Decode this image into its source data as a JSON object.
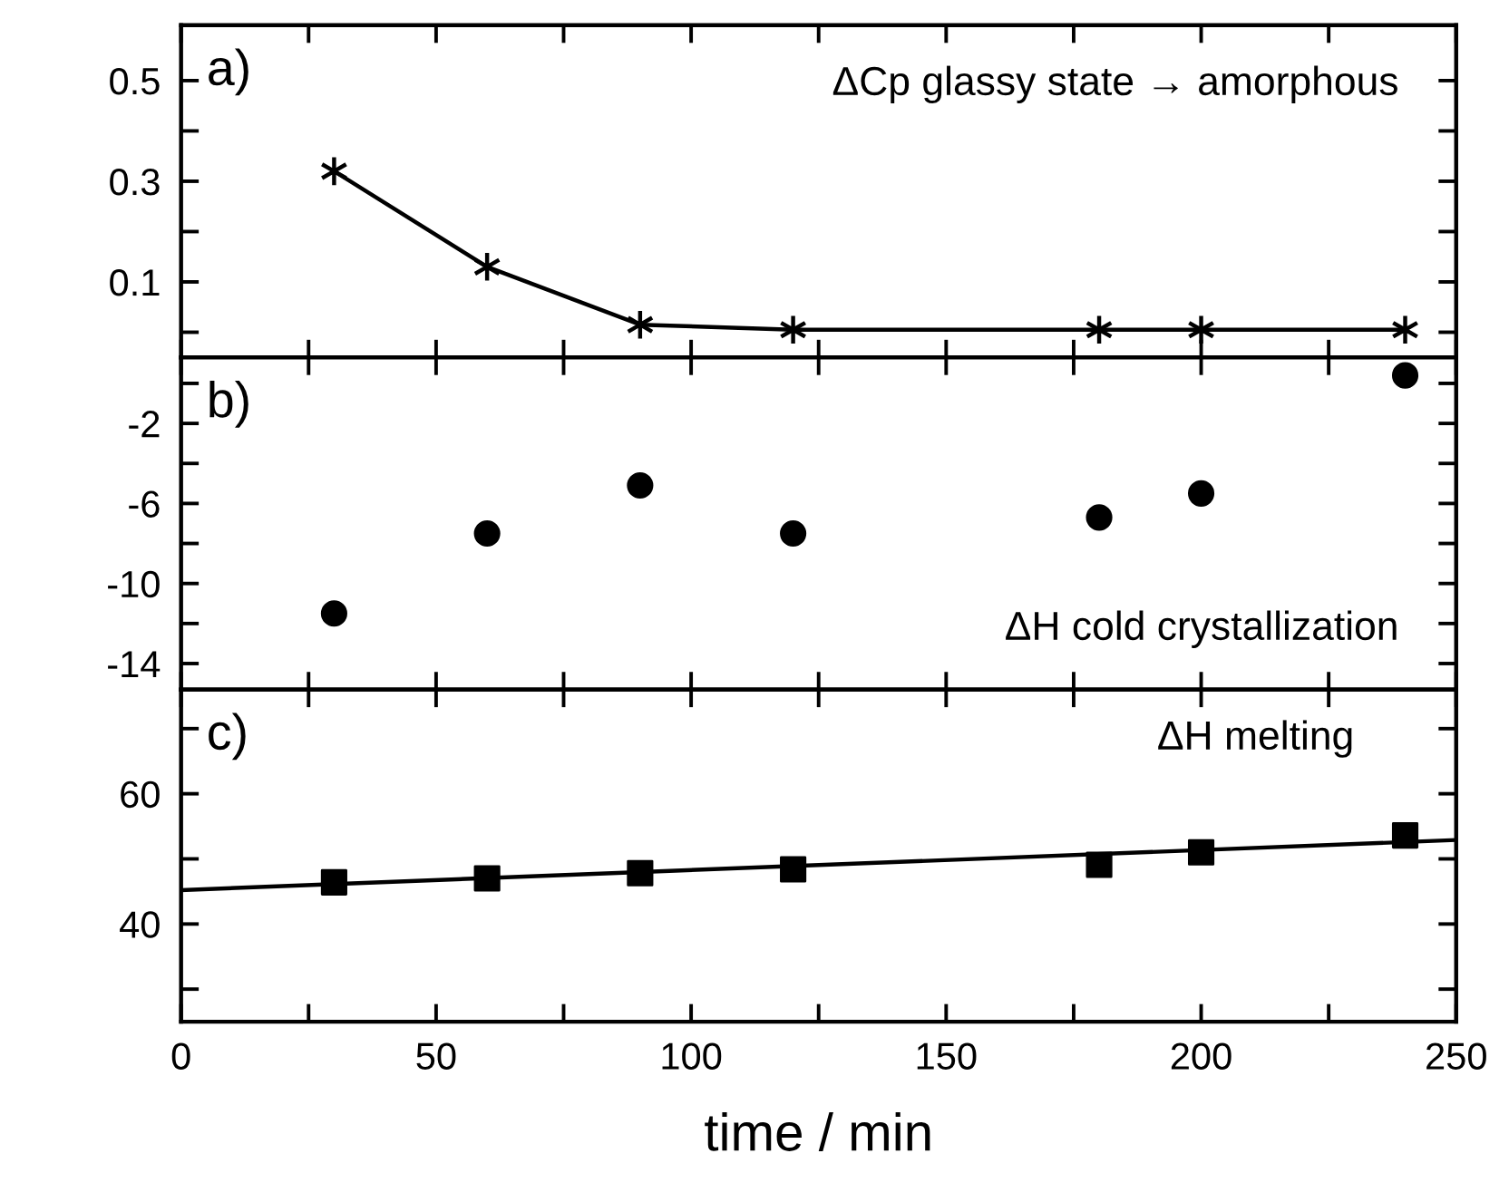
{
  "chart_data": [
    {
      "type": "line",
      "x": [
        30,
        60,
        90,
        120,
        180,
        200,
        240
      ],
      "marker": "cross",
      "line_style": "solid",
      "grid": false,
      "legend": false,
      "tick_labels": "y",
      "series": [
        {
          "color": "#000000",
          "values": [
            0.32,
            0.13,
            0.015,
            0.005,
            0.005,
            0.005,
            0.005
          ]
        }
      ],
      "xlim": [
        0,
        250
      ],
      "xticks": [
        {
          "value": 0,
          "label": null
        },
        {
          "value": 25,
          "label": null
        },
        {
          "value": 50,
          "label": null
        },
        {
          "value": 75,
          "label": null
        },
        {
          "value": 100,
          "label": null
        },
        {
          "value": 125,
          "label": null
        },
        {
          "value": 150,
          "label": null
        },
        {
          "value": 175,
          "label": null
        },
        {
          "value": 200,
          "label": null
        },
        {
          "value": 225,
          "label": null
        },
        {
          "value": 250,
          "label": null
        }
      ],
      "ylim": [
        -0.05,
        0.61
      ],
      "yticks": [
        {
          "value": 0,
          "label": null
        },
        0.1,
        {
          "value": 0.2,
          "label": null
        },
        0.3,
        {
          "value": 0.4,
          "label": null
        },
        0.5
      ],
      "annotations": [
        "a)",
        "ΔCp glassy state → amorphous"
      ]
    },
    {
      "type": "scatter",
      "x": [
        30,
        60,
        90,
        120,
        180,
        200,
        240
      ],
      "marker": "circle",
      "grid": false,
      "legend": false,
      "tick_labels": "y",
      "series": [
        {
          "color": "#000000",
          "values": [
            -11.5,
            -7.5,
            -5.1,
            -7.5,
            -6.7,
            -5.5,
            0.4
          ]
        }
      ],
      "xlim": [
        0,
        250
      ],
      "xticks": [
        {
          "value": 0,
          "label": null
        },
        {
          "value": 25,
          "label": null
        },
        {
          "value": 50,
          "label": null
        },
        {
          "value": 75,
          "label": null
        },
        {
          "value": 100,
          "label": null
        },
        {
          "value": 125,
          "label": null
        },
        {
          "value": 150,
          "label": null
        },
        {
          "value": 175,
          "label": null
        },
        {
          "value": 200,
          "label": null
        },
        {
          "value": 225,
          "label": null
        },
        {
          "value": 250,
          "label": null
        }
      ],
      "ylim": [
        -15.3,
        1.3
      ],
      "yticks": [
        {
          "value": -14,
          "label": "-14"
        },
        {
          "value": -12,
          "label": null
        },
        {
          "value": -10,
          "label": "-10"
        },
        {
          "value": -8,
          "label": null
        },
        {
          "value": -6,
          "label": "-6"
        },
        {
          "value": -4,
          "label": null
        },
        {
          "value": -2,
          "label": "-2"
        },
        {
          "value": 0,
          "label": null
        }
      ],
      "annotations": [
        "b)",
        "ΔH cold crystallization"
      ]
    },
    {
      "type": "scatter",
      "x": [
        30,
        60,
        90,
        120,
        180,
        200,
        240
      ],
      "marker": "square",
      "grid": false,
      "legend": false,
      "xlabel": "time / min",
      "series": [
        {
          "color": "#000000",
          "values": [
            46.4,
            47,
            47.8,
            48.4,
            49.1,
            51,
            53.6
          ]
        },
        {
          "type": "line",
          "color": "#000000",
          "x": [
            0,
            250
          ],
          "values": [
            45.2,
            52.9
          ],
          "marker": "none",
          "line_style": "solid"
        }
      ],
      "xlim": [
        0,
        250
      ],
      "xticks": [
        0,
        {
          "value": 25,
          "label": null
        },
        50,
        {
          "value": 75,
          "label": null
        },
        100,
        {
          "value": 125,
          "label": null
        },
        150,
        {
          "value": 175,
          "label": null
        },
        200,
        {
          "value": 225,
          "label": null
        },
        250
      ],
      "ylim": [
        25,
        76
      ],
      "yticks": [
        {
          "value": 30,
          "label": null
        },
        40,
        {
          "value": 50,
          "label": null
        },
        60,
        {
          "value": 70,
          "label": null
        }
      ],
      "annotations": [
        "c)",
        "ΔH melting"
      ]
    }
  ]
}
